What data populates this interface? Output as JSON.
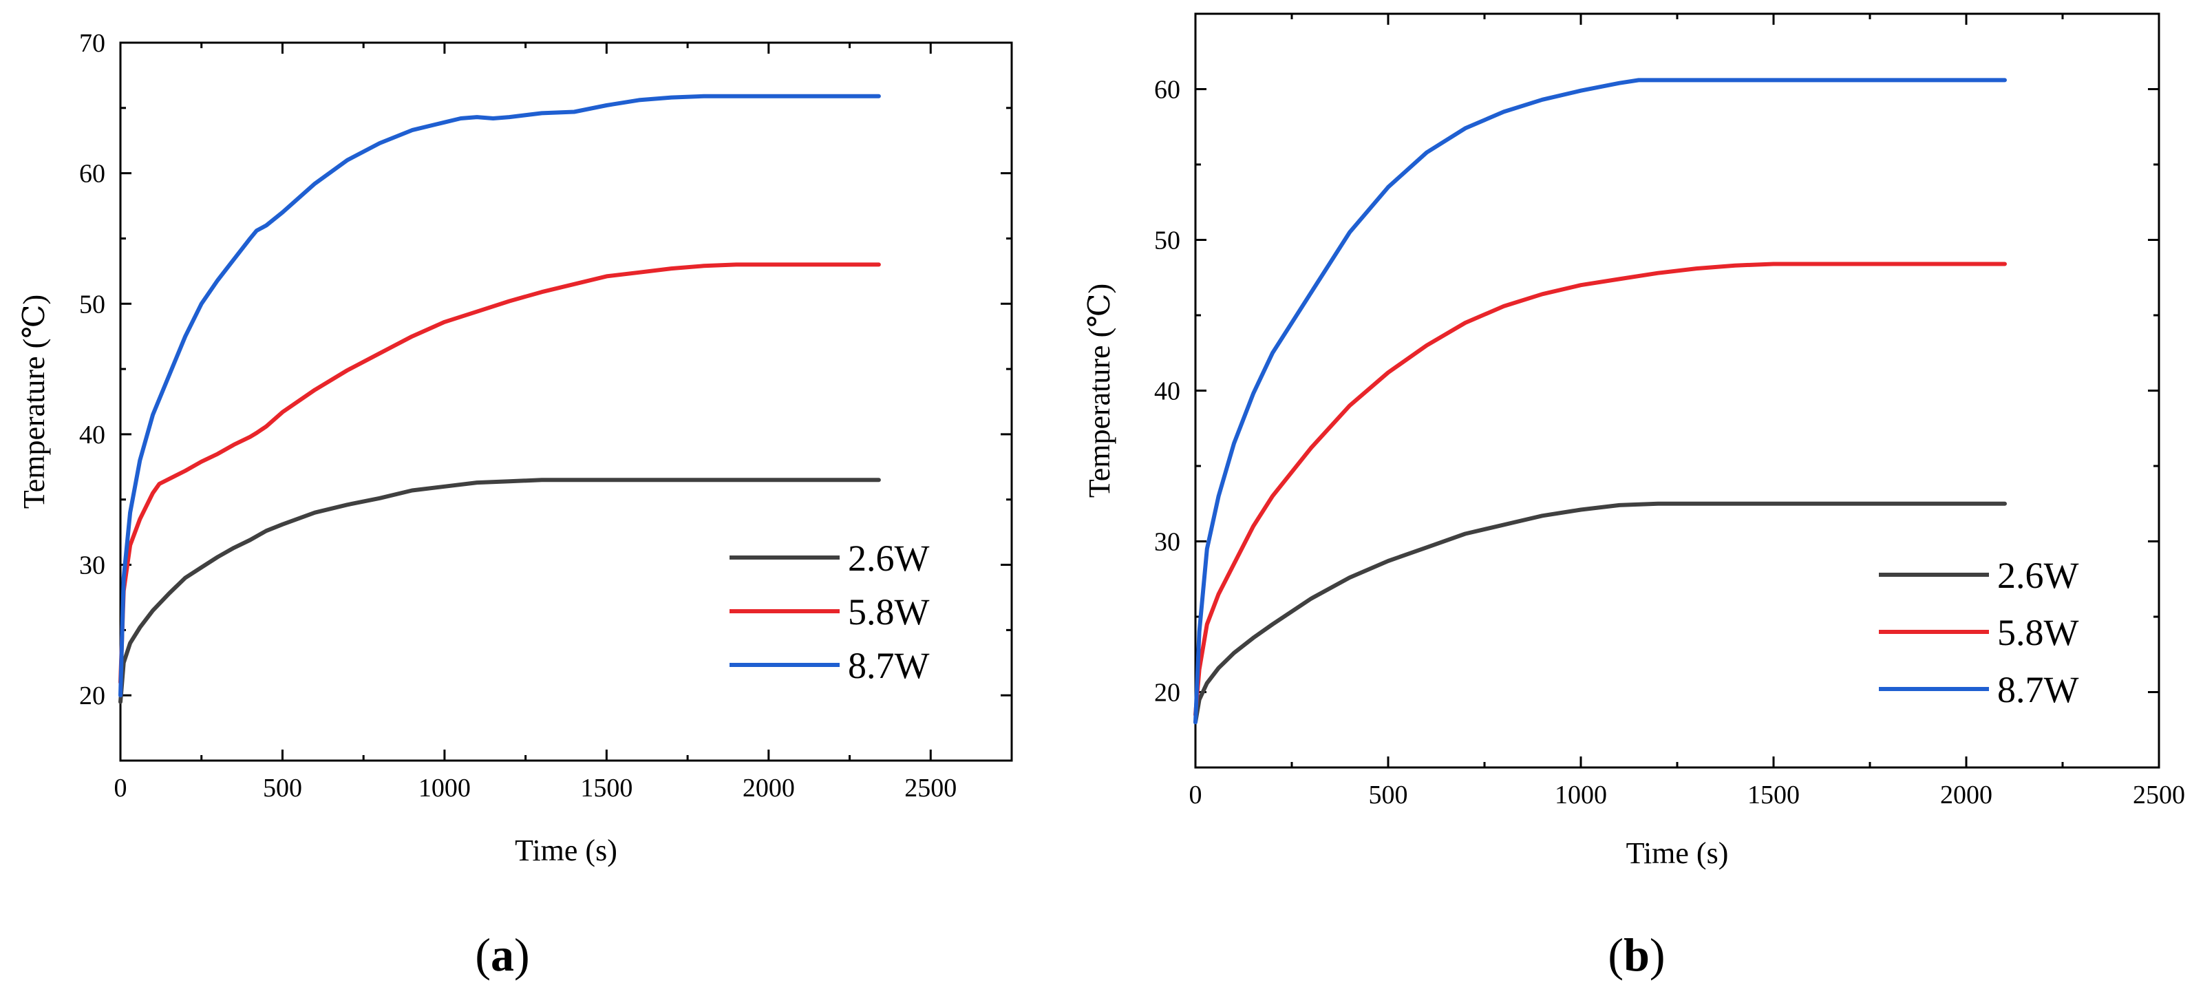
{
  "figure": {
    "panels": [
      {
        "open": "(",
        "letter": "a",
        "close": ")"
      },
      {
        "open": "(",
        "letter": "b",
        "close": ")"
      }
    ]
  },
  "chart_data": [
    {
      "type": "line",
      "panel_label": "(a)",
      "xlabel": "Time (s)",
      "ylabel": "Temperature (℃)",
      "xlim": [
        0,
        2750
      ],
      "ylim": [
        15,
        70
      ],
      "xticks": [
        0,
        500,
        1000,
        1500,
        2000,
        2500
      ],
      "yticks": [
        20,
        30,
        40,
        50,
        60,
        70
      ],
      "grid": false,
      "legend": "bottom-right",
      "series": [
        {
          "name": "2.6W",
          "color": "#404040",
          "x": [
            0,
            10,
            30,
            60,
            100,
            150,
            200,
            250,
            300,
            350,
            400,
            450,
            500,
            600,
            700,
            800,
            900,
            1000,
            1100,
            1200,
            1300,
            1400,
            1500,
            1600,
            1700,
            1800,
            1900,
            2000,
            2100,
            2200,
            2340
          ],
          "y": [
            19.5,
            22.5,
            24.0,
            25.2,
            26.5,
            27.8,
            29.0,
            29.8,
            30.6,
            31.3,
            31.9,
            32.6,
            33.1,
            34.0,
            34.6,
            35.1,
            35.7,
            36.0,
            36.3,
            36.4,
            36.5,
            36.5,
            36.5,
            36.5,
            36.5,
            36.5,
            36.5,
            36.5,
            36.5,
            36.5,
            36.5
          ]
        },
        {
          "name": "5.8W",
          "color": "#e8252a",
          "x": [
            0,
            10,
            30,
            60,
            100,
            120,
            200,
            250,
            300,
            350,
            400,
            420,
            450,
            500,
            600,
            700,
            800,
            900,
            1000,
            1100,
            1200,
            1300,
            1400,
            1500,
            1600,
            1700,
            1800,
            1900,
            2000,
            2100,
            2200,
            2340
          ],
          "y": [
            21,
            28,
            31.5,
            33.5,
            35.5,
            36.2,
            37.2,
            37.9,
            38.5,
            39.2,
            39.8,
            40.1,
            40.6,
            41.7,
            43.4,
            44.9,
            46.2,
            47.5,
            48.6,
            49.4,
            50.2,
            50.9,
            51.5,
            52.1,
            52.4,
            52.7,
            52.9,
            53.0,
            53.0,
            53.0,
            53.0,
            53.0
          ]
        },
        {
          "name": "8.7W",
          "color": "#1f5fd1",
          "x": [
            0,
            10,
            30,
            60,
            100,
            150,
            200,
            250,
            300,
            350,
            400,
            420,
            450,
            500,
            600,
            700,
            800,
            900,
            1000,
            1050,
            1100,
            1150,
            1200,
            1300,
            1400,
            1500,
            1600,
            1700,
            1800,
            1900,
            2000,
            2100,
            2200,
            2340
          ],
          "y": [
            20,
            29,
            34,
            38,
            41.5,
            44.5,
            47.5,
            50.0,
            51.8,
            53.4,
            55.0,
            55.6,
            56.0,
            57.0,
            59.2,
            61.0,
            62.3,
            63.3,
            63.9,
            64.2,
            64.3,
            64.2,
            64.3,
            64.6,
            64.7,
            65.2,
            65.6,
            65.8,
            65.9,
            65.9,
            65.9,
            65.9,
            65.9,
            65.9
          ]
        }
      ]
    },
    {
      "type": "line",
      "panel_label": "(b)",
      "xlabel": "Time (s)",
      "ylabel": "Temperature (℃)",
      "xlim": [
        0,
        2500
      ],
      "ylim": [
        15,
        65
      ],
      "xticks": [
        0,
        500,
        1000,
        1500,
        2000,
        2500
      ],
      "yticks": [
        20,
        30,
        40,
        50,
        60
      ],
      "grid": false,
      "legend": "bottom-right",
      "series": [
        {
          "name": "2.6W",
          "color": "#404040",
          "x": [
            0,
            10,
            30,
            60,
            100,
            150,
            200,
            300,
            400,
            500,
            600,
            700,
            800,
            900,
            1000,
            1100,
            1200,
            1300,
            1400,
            1500,
            1600,
            1700,
            1800,
            1900,
            2000,
            2100
          ],
          "y": [
            18,
            19.5,
            20.6,
            21.6,
            22.6,
            23.6,
            24.5,
            26.2,
            27.6,
            28.7,
            29.6,
            30.5,
            31.1,
            31.7,
            32.1,
            32.4,
            32.5,
            32.5,
            32.5,
            32.5,
            32.5,
            32.5,
            32.5,
            32.5,
            32.5,
            32.5
          ]
        },
        {
          "name": "5.8W",
          "color": "#e8252a",
          "x": [
            0,
            10,
            30,
            60,
            100,
            150,
            200,
            300,
            400,
            500,
            600,
            700,
            800,
            900,
            1000,
            1100,
            1200,
            1300,
            1400,
            1500,
            1600,
            1700,
            1800,
            1900,
            2000,
            2100
          ],
          "y": [
            18.5,
            21.5,
            24.5,
            26.5,
            28.5,
            31.0,
            33.0,
            36.2,
            39.0,
            41.2,
            43.0,
            44.5,
            45.6,
            46.4,
            47.0,
            47.4,
            47.8,
            48.1,
            48.3,
            48.4,
            48.4,
            48.4,
            48.4,
            48.4,
            48.4,
            48.4
          ]
        },
        {
          "name": "8.7W",
          "color": "#1f5fd1",
          "x": [
            0,
            10,
            30,
            60,
            100,
            150,
            200,
            300,
            400,
            500,
            600,
            700,
            800,
            900,
            1000,
            1100,
            1150,
            1200,
            1300,
            1400,
            1500,
            1600,
            1700,
            1800,
            1900,
            2000,
            2100
          ],
          "y": [
            18,
            24,
            29.5,
            33,
            36.5,
            39.8,
            42.5,
            46.5,
            50.5,
            53.5,
            55.8,
            57.4,
            58.5,
            59.3,
            59.9,
            60.4,
            60.6,
            60.6,
            60.6,
            60.6,
            60.6,
            60.6,
            60.6,
            60.6,
            60.6,
            60.6,
            60.6
          ]
        }
      ]
    }
  ]
}
